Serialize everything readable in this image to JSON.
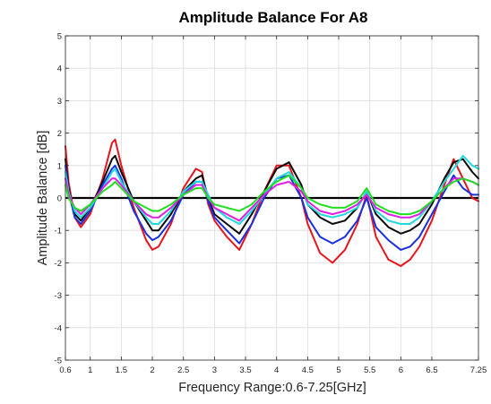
{
  "chart_data": {
    "type": "line",
    "title": "Amplitude Balance For A8",
    "xlabel": "Frequency Range:0.6-7.25[GHz]",
    "ylabel": "Amplitude Balance [dB]",
    "xlim": [
      0.6,
      7.25
    ],
    "ylim": [
      -5,
      5
    ],
    "x_ticks": [
      0.6,
      1,
      1.5,
      2,
      2.5,
      3,
      3.5,
      4,
      4.5,
      5,
      5.5,
      6,
      6.5,
      7.25
    ],
    "x_tick_labels": [
      "0.6",
      "1",
      "1.5",
      "2",
      "2.5",
      "3",
      "3.5",
      "4",
      "4.5",
      "5",
      "5.5",
      "6",
      "6.5",
      "7.25"
    ],
    "y_ticks": [
      -5,
      -4,
      -3,
      -2,
      -1,
      0,
      1,
      2,
      3,
      4,
      5
    ],
    "y_tick_labels": [
      "-5",
      "-4",
      "-3",
      "-2",
      "-1",
      "0",
      "1",
      "2",
      "3",
      "4",
      "5"
    ],
    "grid": true,
    "reference_line": {
      "y": 0,
      "color": "#000000"
    },
    "x": [
      0.6,
      0.65,
      0.75,
      0.85,
      1.0,
      1.2,
      1.35,
      1.4,
      1.5,
      1.7,
      1.9,
      2.0,
      2.1,
      2.3,
      2.5,
      2.7,
      2.8,
      2.9,
      3.0,
      3.2,
      3.4,
      3.6,
      3.8,
      4.0,
      4.2,
      4.4,
      4.5,
      4.7,
      4.9,
      5.1,
      5.3,
      5.45,
      5.6,
      5.8,
      6.0,
      6.15,
      6.3,
      6.5,
      6.7,
      6.85,
      7.0,
      7.15,
      7.25
    ],
    "series": [
      {
        "color": "#e8141c",
        "values": [
          1.6,
          0.5,
          -0.6,
          -0.9,
          -0.5,
          0.6,
          1.7,
          1.8,
          1.0,
          -0.3,
          -1.3,
          -1.6,
          -1.5,
          -0.8,
          0.3,
          0.9,
          0.8,
          -0.2,
          -0.7,
          -1.2,
          -1.6,
          -0.8,
          0.2,
          1.0,
          1.0,
          0.0,
          -0.8,
          -1.7,
          -2.0,
          -1.6,
          -0.8,
          0.1,
          -1.2,
          -1.9,
          -2.1,
          -1.9,
          -1.5,
          -0.7,
          0.4,
          1.2,
          0.6,
          0.0,
          -0.1
        ]
      },
      {
        "color": "#0a0a0a",
        "values": [
          1.2,
          0.3,
          -0.5,
          -0.7,
          -0.3,
          0.5,
          1.2,
          1.3,
          0.8,
          -0.1,
          -0.7,
          -1.0,
          -1.0,
          -0.5,
          0.2,
          0.6,
          0.7,
          0.0,
          -0.5,
          -0.8,
          -1.1,
          -0.5,
          0.2,
          0.9,
          1.1,
          0.4,
          -0.2,
          -0.6,
          -0.8,
          -0.7,
          -0.3,
          0.2,
          -0.5,
          -0.9,
          -1.1,
          -1.0,
          -0.8,
          -0.2,
          0.6,
          1.1,
          1.2,
          0.8,
          0.6
        ]
      },
      {
        "color": "#1830e0",
        "values": [
          1.0,
          0.2,
          -0.6,
          -0.8,
          -0.4,
          0.4,
          0.9,
          1.0,
          0.6,
          -0.4,
          -1.1,
          -1.3,
          -1.2,
          -0.7,
          0.1,
          0.5,
          0.5,
          -0.1,
          -0.6,
          -1.0,
          -1.4,
          -0.8,
          0.0,
          0.6,
          0.7,
          0.0,
          -0.6,
          -1.2,
          -1.4,
          -1.2,
          -0.7,
          0.0,
          -0.9,
          -1.3,
          -1.6,
          -1.5,
          -1.2,
          -0.5,
          0.2,
          0.7,
          0.3,
          0.1,
          0.1
        ]
      },
      {
        "color": "#20d8e0",
        "values": [
          0.8,
          0.2,
          -0.4,
          -0.6,
          -0.3,
          0.3,
          0.8,
          0.9,
          0.5,
          -0.1,
          -0.6,
          -0.8,
          -0.8,
          -0.4,
          0.2,
          0.5,
          0.5,
          0.1,
          -0.3,
          -0.6,
          -0.8,
          -0.4,
          0.1,
          0.6,
          0.8,
          0.3,
          -0.2,
          -0.5,
          -0.6,
          -0.5,
          -0.3,
          0.2,
          -0.4,
          -0.7,
          -0.8,
          -0.8,
          -0.6,
          -0.1,
          0.5,
          0.9,
          1.3,
          1.0,
          0.9
        ]
      },
      {
        "color": "#e020e0",
        "values": [
          0.6,
          0.1,
          -0.3,
          -0.5,
          -0.2,
          0.3,
          0.6,
          0.6,
          0.4,
          -0.1,
          -0.5,
          -0.6,
          -0.6,
          -0.3,
          0.1,
          0.4,
          0.4,
          0.0,
          -0.3,
          -0.5,
          -0.7,
          -0.3,
          0.1,
          0.4,
          0.5,
          0.2,
          -0.1,
          -0.4,
          -0.5,
          -0.4,
          -0.2,
          0.1,
          -0.3,
          -0.5,
          -0.6,
          -0.6,
          -0.5,
          -0.1,
          0.3,
          0.6,
          0.6,
          0.5,
          0.4
        ]
      },
      {
        "color": "#20e020",
        "values": [
          0.4,
          0.0,
          -0.3,
          -0.4,
          -0.2,
          0.2,
          0.4,
          0.5,
          0.3,
          -0.1,
          -0.3,
          -0.4,
          -0.4,
          -0.2,
          0.1,
          0.3,
          0.3,
          0.0,
          -0.2,
          -0.3,
          -0.4,
          -0.2,
          0.2,
          0.5,
          0.7,
          0.3,
          0.0,
          -0.2,
          -0.3,
          -0.3,
          -0.1,
          0.3,
          -0.2,
          -0.4,
          -0.5,
          -0.5,
          -0.4,
          -0.1,
          0.3,
          0.5,
          0.6,
          0.5,
          0.4
        ]
      }
    ]
  }
}
